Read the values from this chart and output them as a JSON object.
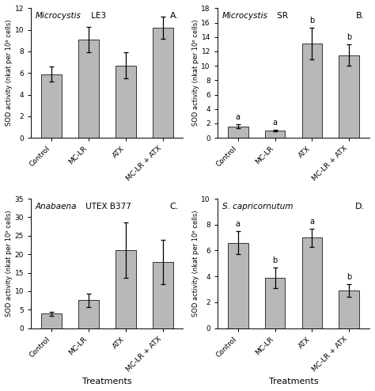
{
  "panels": [
    {
      "label": "A.",
      "title_italic": "Microcystis",
      "title_rest": " LE3",
      "values": [
        5.9,
        9.1,
        6.7,
        10.2
      ],
      "errors": [
        0.7,
        1.2,
        1.2,
        1.0
      ],
      "ylim": [
        0,
        12
      ],
      "yticks": [
        0,
        2,
        4,
        6,
        8,
        10,
        12
      ],
      "sig_labels": [
        "",
        "",
        "",
        ""
      ],
      "ylabel": "SOD activity (nkat per 10⁶ cells)"
    },
    {
      "label": "B.",
      "title_italic": "Microcystis",
      "title_rest": " SR",
      "values": [
        1.6,
        1.0,
        13.1,
        11.5
      ],
      "errors": [
        0.3,
        0.15,
        2.2,
        1.5
      ],
      "ylim": [
        0,
        18
      ],
      "yticks": [
        0,
        2,
        4,
        6,
        8,
        10,
        12,
        14,
        16,
        18
      ],
      "sig_labels": [
        "a",
        "a",
        "b",
        "b"
      ],
      "ylabel": "SOD activity (nkat per 10⁶ cells)"
    },
    {
      "label": "C.",
      "title_italic": "Anabaena",
      "title_rest": " UTEX B377",
      "values": [
        3.9,
        7.6,
        21.2,
        17.9
      ],
      "errors": [
        0.5,
        1.8,
        7.5,
        6.0
      ],
      "ylim": [
        0,
        35
      ],
      "yticks": [
        0,
        5,
        10,
        15,
        20,
        25,
        30,
        35
      ],
      "sig_labels": [
        "",
        "",
        "",
        ""
      ],
      "ylabel": "SOD activity (nkat per 10⁶ cells)"
    },
    {
      "label": "D.",
      "title_italic": "S. capricornutum",
      "title_rest": "",
      "values": [
        6.6,
        3.9,
        7.0,
        2.9
      ],
      "errors": [
        0.9,
        0.8,
        0.7,
        0.5
      ],
      "ylim": [
        0,
        10
      ],
      "yticks": [
        0,
        2,
        4,
        6,
        8,
        10
      ],
      "sig_labels": [
        "a",
        "b",
        "a",
        "b"
      ],
      "ylabel": "SOD activity (nkat per 10⁶ cells)"
    }
  ],
  "categories": [
    "Control",
    "MC-LR",
    "ATX",
    "MC-LR + ATX"
  ],
  "bar_color": "#b8b8b8",
  "bar_edgecolor": "#333333",
  "bar_width": 0.55,
  "xlabel": "Treatments",
  "fig_width": 4.74,
  "fig_height": 4.94
}
